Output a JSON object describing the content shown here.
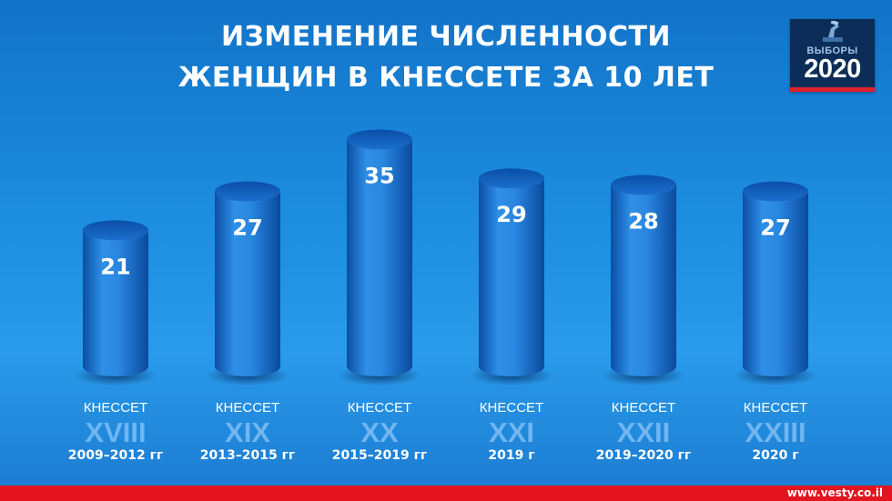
{
  "header": {
    "title_line1": "ИЗМЕНЕНИЕ ЧИСЛЕННОСТИ",
    "title_line2": "ЖЕНЩИН В КНЕССЕТЕ ЗА 10 ЛЕТ"
  },
  "logo": {
    "line1": "ВЫБОРЫ",
    "line2": "2020"
  },
  "chart_data": {
    "type": "bar",
    "title": "ИЗМЕНЕНИЕ ЧИСЛЕННОСТИ ЖЕНЩИН В КНЕССЕТЕ ЗА 10 ЛЕТ",
    "categories": [
      "XVIII",
      "XIX",
      "XX",
      "XXI",
      "XXII",
      "XXIII"
    ],
    "category_prefix": "КНЕССЕТ",
    "years": [
      "2009–2012 гг",
      "2013–2015 гг",
      "2015–2019 гг",
      "2019 г",
      "2019–2020 гг",
      "2020 г"
    ],
    "values": [
      21,
      27,
      35,
      29,
      28,
      27
    ],
    "data_labels": [
      "21",
      "27",
      "35",
      "29",
      "28",
      "27"
    ],
    "xlabel": "",
    "ylabel": "",
    "grid": false,
    "legend": "none"
  },
  "colors": {
    "background": "#1d8ee0",
    "bar_light": "#3da8f2",
    "bar_dark": "#0a55b0",
    "numeral": "#6fb6f2",
    "footer": "#e3141d"
  },
  "footer": {
    "site": "www.vesty.co.il"
  }
}
